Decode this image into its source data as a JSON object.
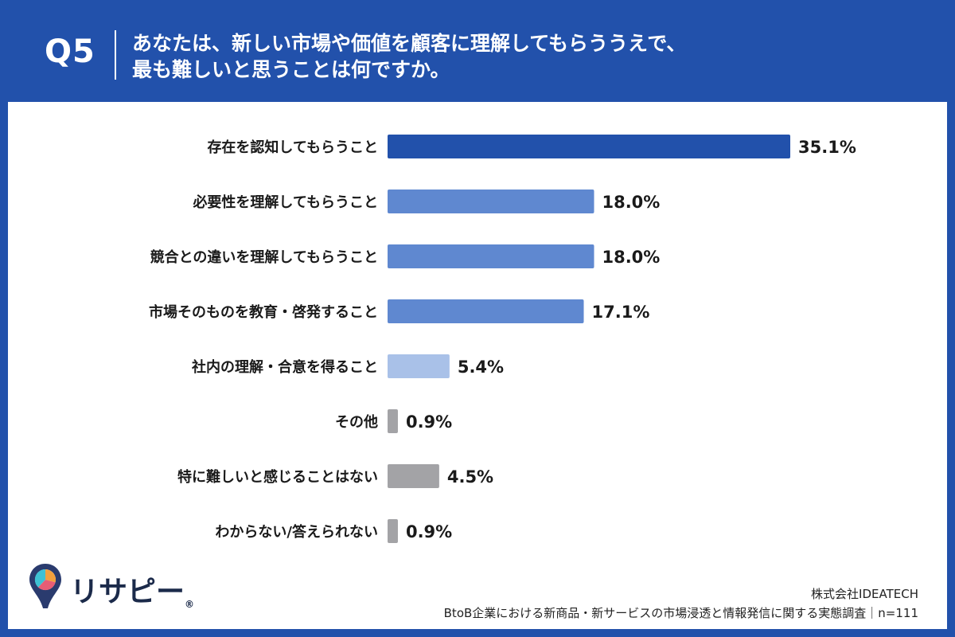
{
  "header": {
    "question_number": "Q5",
    "question_line1": "あなたは、新しい市場や価値を顧客に理解してもらううえで、",
    "question_line2": "最も難しいと思うことは何ですか。"
  },
  "chart_data": {
    "type": "bar",
    "orientation": "horizontal",
    "categories": [
      "存在を認知してもらうこと",
      "必要性を理解してもらうこと",
      "競合との違いを理解してもらうこと",
      "市場そのものを教育・啓発すること",
      "社内の理解・合意を得ること",
      "その他",
      "特に難しいと感じることはない",
      "わからない/答えられない"
    ],
    "values": [
      35.1,
      18.0,
      18.0,
      17.1,
      5.4,
      0.9,
      4.5,
      0.9
    ],
    "value_labels": [
      "35.1%",
      "18.0%",
      "18.0%",
      "17.1%",
      "5.4%",
      "0.9%",
      "4.5%",
      "0.9%"
    ],
    "bar_colors": [
      "#2251ab",
      "#5f88d0",
      "#5f88d0",
      "#5f88d0",
      "#a9c1e8",
      "#a3a3a6",
      "#a3a3a6",
      "#a3a3a6"
    ],
    "xlim": [
      0,
      35.1
    ],
    "grid": false,
    "unit": "%"
  },
  "branding": {
    "logo_text": "リサピー",
    "logo_mark": "®"
  },
  "footer": {
    "company": "株式会社IDEATECH",
    "survey": "BtoB企業における新商品・新サービスの市場浸透と情報発信に関する実態調査｜n=111"
  },
  "colors": {
    "background": "#2251ab",
    "panel": "#ffffff",
    "text": "#1a1a1a"
  }
}
